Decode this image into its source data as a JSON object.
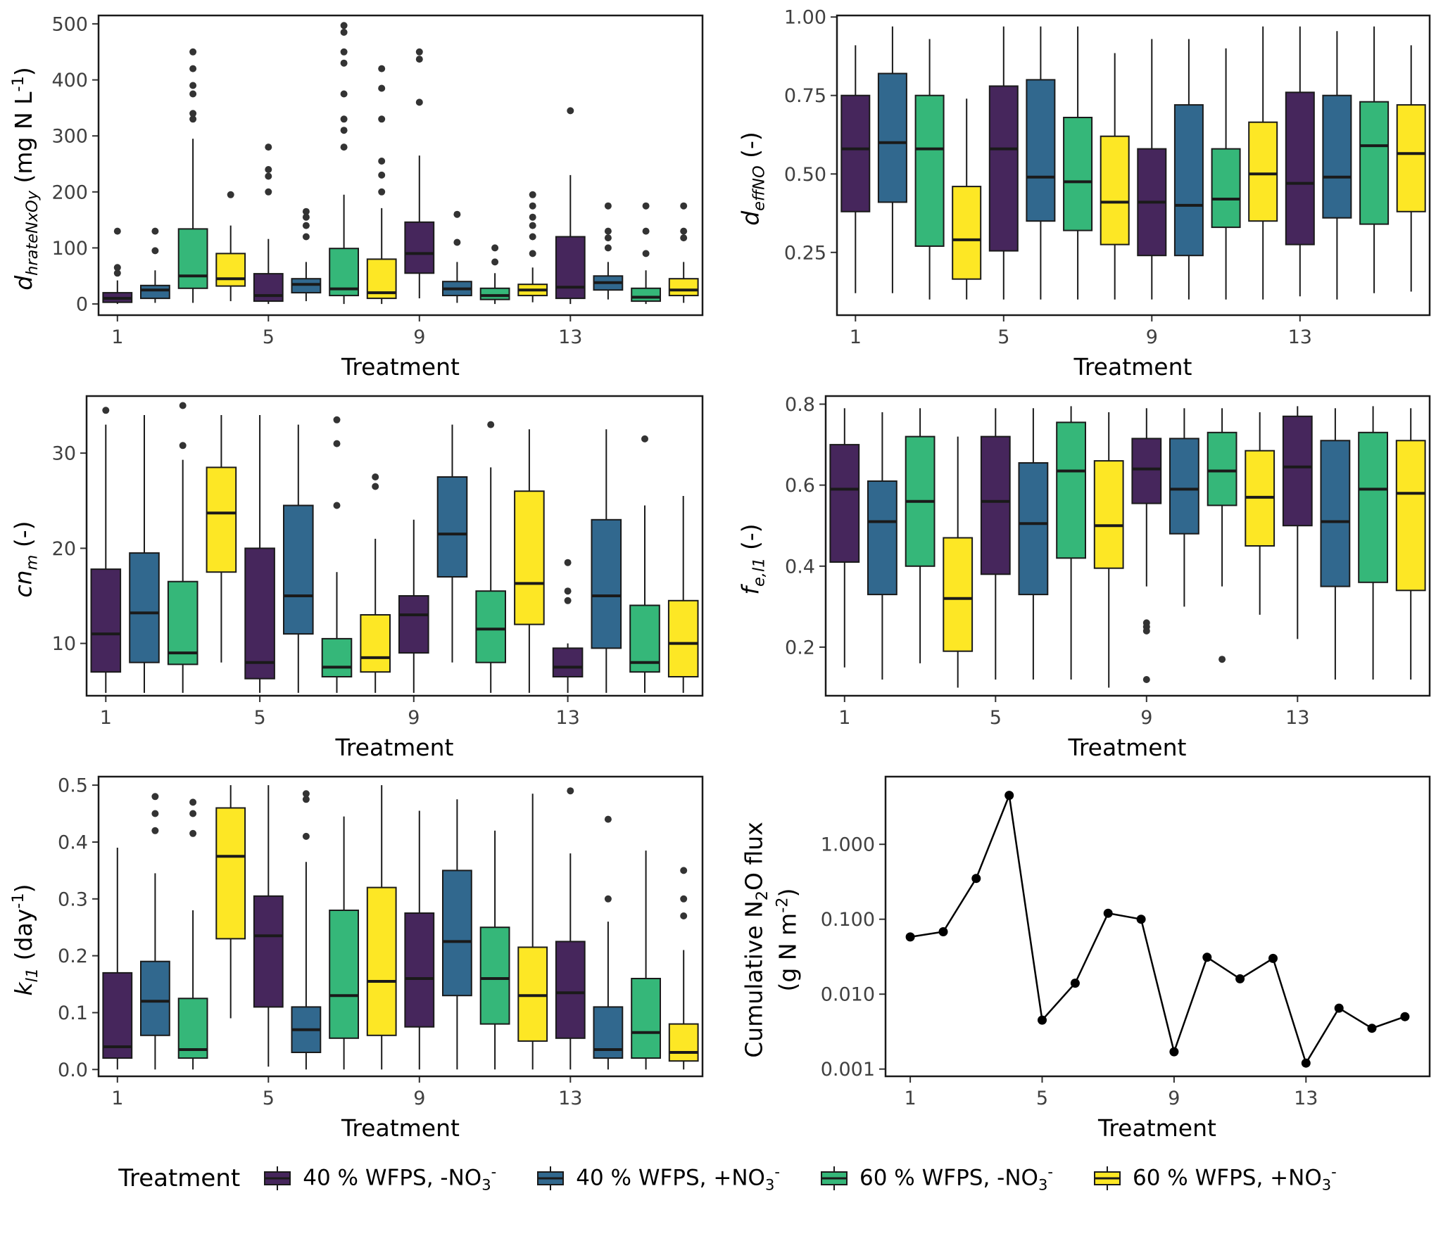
{
  "palette": {
    "purple": "#46265C",
    "blue": "#31688E",
    "green": "#35B779",
    "yellow": "#FDE725",
    "outlier": "#333333"
  },
  "legend": {
    "title": "Treatment",
    "items": [
      {
        "label": "40 % WFPS, -NO_{3}^{-}",
        "color": "purple"
      },
      {
        "label": "40 % WFPS, +NO_{3}^{-}",
        "color": "blue"
      },
      {
        "label": "60 % WFPS, -NO_{3}^{-}",
        "color": "green"
      },
      {
        "label": "60 % WFPS, +NO_{3}^{-}",
        "color": "yellow"
      }
    ]
  },
  "box_format": [
    "min",
    "q1",
    "median",
    "q3",
    "max",
    "outliers"
  ],
  "chart_data": [
    {
      "id": "dhrateNxOy",
      "type": "boxplot",
      "ylabel_lines": [
        "*d*_{*hrateNxOy*} (mg N L^{-1})"
      ],
      "xlabel": "Treatment",
      "ylim": [
        -20,
        515
      ],
      "yticks": [
        0,
        100,
        200,
        300,
        400,
        500
      ],
      "ytick_labels": [
        "0",
        "100",
        "200",
        "300",
        "400",
        "500"
      ],
      "xticks": [
        1,
        5,
        9,
        13
      ],
      "colors_cycle": [
        "purple",
        "blue",
        "green",
        "yellow"
      ],
      "boxes": [
        [
          0,
          3,
          10,
          20,
          42,
          [
            55,
            65,
            130
          ]
        ],
        [
          2,
          10,
          25,
          33,
          60,
          [
            95,
            130
          ]
        ],
        [
          2,
          28,
          50,
          134,
          295,
          [
            330,
            340,
            375,
            390,
            420,
            450
          ]
        ],
        [
          5,
          32,
          45,
          90,
          140,
          [
            195
          ]
        ],
        [
          0,
          5,
          15,
          54,
          116,
          [
            200,
            228,
            240,
            280
          ]
        ],
        [
          5,
          20,
          35,
          45,
          75,
          [
            120,
            140,
            155,
            165
          ]
        ],
        [
          0,
          15,
          27,
          99,
          195,
          [
            280,
            310,
            330,
            375,
            430,
            450,
            485,
            497
          ]
        ],
        [
          0,
          10,
          20,
          80,
          171,
          [
            200,
            230,
            255,
            330,
            385,
            420
          ]
        ],
        [
          10,
          55,
          90,
          146,
          265,
          [
            360,
            437,
            450
          ]
        ],
        [
          2,
          15,
          27,
          40,
          75,
          [
            110,
            160
          ]
        ],
        [
          0,
          8,
          15,
          28,
          55,
          [
            75,
            100
          ]
        ],
        [
          3,
          15,
          25,
          35,
          65,
          [
            90,
            120,
            140,
            155,
            175,
            195
          ]
        ],
        [
          0,
          10,
          30,
          120,
          230,
          [
            345
          ]
        ],
        [
          8,
          25,
          38,
          50,
          75,
          [
            100,
            118,
            130,
            175
          ]
        ],
        [
          0,
          5,
          12,
          28,
          60,
          [
            90,
            130,
            175
          ]
        ],
        [
          2,
          15,
          25,
          45,
          75,
          [
            118,
            130,
            175
          ]
        ]
      ]
    },
    {
      "id": "deffNO",
      "type": "boxplot",
      "ylabel_lines": [
        "*d*_{*effNO*} (-)"
      ],
      "xlabel": "Treatment",
      "ylim": [
        0.05,
        1.005
      ],
      "yticks": [
        0.25,
        0.5,
        0.75,
        1.0
      ],
      "ytick_labels": [
        "0.25",
        "0.50",
        "0.75",
        "1.00"
      ],
      "xticks": [
        1,
        5,
        9,
        13
      ],
      "colors_cycle": [
        "purple",
        "blue",
        "green",
        "yellow"
      ],
      "boxes": [
        [
          0.12,
          0.38,
          0.58,
          0.75,
          0.91,
          []
        ],
        [
          0.12,
          0.41,
          0.6,
          0.82,
          0.97,
          []
        ],
        [
          0.1,
          0.27,
          0.58,
          0.75,
          0.93,
          []
        ],
        [
          0.1,
          0.165,
          0.29,
          0.46,
          0.74,
          []
        ],
        [
          0.1,
          0.255,
          0.58,
          0.78,
          0.97,
          []
        ],
        [
          0.1,
          0.35,
          0.49,
          0.8,
          0.97,
          []
        ],
        [
          0.1,
          0.32,
          0.475,
          0.68,
          0.97,
          []
        ],
        [
          0.1,
          0.275,
          0.41,
          0.62,
          0.885,
          []
        ],
        [
          0.1,
          0.24,
          0.41,
          0.58,
          0.93,
          []
        ],
        [
          0.1,
          0.24,
          0.4,
          0.72,
          0.93,
          []
        ],
        [
          0.1,
          0.33,
          0.42,
          0.58,
          0.9,
          []
        ],
        [
          0.1,
          0.35,
          0.5,
          0.665,
          0.97,
          []
        ],
        [
          0.11,
          0.275,
          0.47,
          0.76,
          0.97,
          []
        ],
        [
          0.1,
          0.36,
          0.49,
          0.75,
          0.955,
          []
        ],
        [
          0.12,
          0.34,
          0.59,
          0.73,
          0.97,
          []
        ],
        [
          0.125,
          0.38,
          0.565,
          0.72,
          0.91,
          []
        ]
      ]
    },
    {
      "id": "cnm",
      "type": "boxplot",
      "ylabel_lines": [
        "*cn*_{*m*} (-)"
      ],
      "xlabel": "Treatment",
      "ylim": [
        4.5,
        36
      ],
      "yticks": [
        10,
        20,
        30
      ],
      "ytick_labels": [
        "10",
        "20",
        "30"
      ],
      "xticks": [
        1,
        5,
        9,
        13
      ],
      "colors_cycle": [
        "purple",
        "blue",
        "green",
        "yellow"
      ],
      "boxes": [
        [
          4.8,
          7,
          11,
          17.8,
          33,
          [
            34.5
          ]
        ],
        [
          4.8,
          8,
          13.2,
          19.5,
          34,
          []
        ],
        [
          4.8,
          7.8,
          9,
          16.5,
          29.3,
          [
            30.8,
            35
          ]
        ],
        [
          8,
          17.5,
          23.7,
          28.5,
          34,
          []
        ],
        [
          4.8,
          6.3,
          8,
          20,
          34,
          []
        ],
        [
          4.8,
          11,
          15,
          24.5,
          33,
          []
        ],
        [
          4.8,
          6.5,
          7.5,
          10.5,
          17.5,
          [
            24.5,
            31,
            33.5
          ]
        ],
        [
          4.8,
          7,
          8.5,
          13,
          21,
          [
            26.5,
            27.5
          ]
        ],
        [
          4.8,
          9,
          13,
          15,
          23,
          []
        ],
        [
          8,
          17,
          21.5,
          27.5,
          33,
          []
        ],
        [
          4.8,
          8,
          11.5,
          15.5,
          28.5,
          [
            33
          ]
        ],
        [
          4.8,
          12,
          16.3,
          26,
          32.5,
          []
        ],
        [
          4.8,
          6.5,
          7.5,
          9.5,
          10,
          [
            14.5,
            15.5,
            18.5
          ]
        ],
        [
          4.8,
          9.5,
          15,
          23,
          32.5,
          []
        ],
        [
          4.8,
          7,
          8,
          14,
          24.5,
          [
            31.5
          ]
        ],
        [
          4.8,
          6.5,
          10,
          14.5,
          25.5,
          []
        ]
      ]
    },
    {
      "id": "fel1",
      "type": "boxplot",
      "ylabel_lines": [
        "*f*_{*e,l1*} (-)"
      ],
      "xlabel": "Treatment",
      "ylim": [
        0.08,
        0.82
      ],
      "yticks": [
        0.2,
        0.4,
        0.6,
        0.8
      ],
      "ytick_labels": [
        "0.2",
        "0.4",
        "0.6",
        "0.8"
      ],
      "xticks": [
        1,
        5,
        9,
        13
      ],
      "colors_cycle": [
        "purple",
        "blue",
        "green",
        "yellow"
      ],
      "boxes": [
        [
          0.15,
          0.41,
          0.59,
          0.7,
          0.79,
          []
        ],
        [
          0.12,
          0.33,
          0.51,
          0.61,
          0.78,
          []
        ],
        [
          0.16,
          0.4,
          0.56,
          0.72,
          0.79,
          []
        ],
        [
          0.1,
          0.19,
          0.32,
          0.47,
          0.72,
          []
        ],
        [
          0.12,
          0.38,
          0.56,
          0.72,
          0.79,
          []
        ],
        [
          0.12,
          0.33,
          0.505,
          0.655,
          0.79,
          []
        ],
        [
          0.12,
          0.42,
          0.635,
          0.755,
          0.795,
          []
        ],
        [
          0.1,
          0.395,
          0.5,
          0.66,
          0.78,
          []
        ],
        [
          0.35,
          0.555,
          0.64,
          0.715,
          0.79,
          [
            0.26,
            0.25,
            0.24,
            0.12
          ]
        ],
        [
          0.3,
          0.48,
          0.59,
          0.715,
          0.79,
          []
        ],
        [
          0.35,
          0.55,
          0.635,
          0.73,
          0.79,
          [
            0.17
          ]
        ],
        [
          0.28,
          0.45,
          0.57,
          0.685,
          0.78,
          []
        ],
        [
          0.22,
          0.5,
          0.645,
          0.77,
          0.795,
          []
        ],
        [
          0.12,
          0.35,
          0.51,
          0.71,
          0.79,
          []
        ],
        [
          0.12,
          0.36,
          0.59,
          0.73,
          0.795,
          []
        ],
        [
          0.12,
          0.34,
          0.58,
          0.71,
          0.79,
          []
        ]
      ]
    },
    {
      "id": "kl1",
      "type": "boxplot",
      "ylabel_lines": [
        "*k*_{*l1*} (day^{-1})"
      ],
      "xlabel": "Treatment",
      "ylim": [
        -0.012,
        0.515
      ],
      "yticks": [
        0.0,
        0.1,
        0.2,
        0.3,
        0.4,
        0.5
      ],
      "ytick_labels": [
        "0.0",
        "0.1",
        "0.2",
        "0.3",
        "0.4",
        "0.5"
      ],
      "xticks": [
        1,
        5,
        9,
        13
      ],
      "colors_cycle": [
        "purple",
        "blue",
        "green",
        "yellow"
      ],
      "boxes": [
        [
          0.0,
          0.02,
          0.04,
          0.17,
          0.39,
          []
        ],
        [
          0.0,
          0.06,
          0.12,
          0.19,
          0.345,
          [
            0.42,
            0.45,
            0.48
          ]
        ],
        [
          0.0,
          0.02,
          0.035,
          0.125,
          0.28,
          [
            0.415,
            0.45,
            0.47
          ]
        ],
        [
          0.09,
          0.23,
          0.375,
          0.46,
          0.5,
          []
        ],
        [
          0.005,
          0.11,
          0.235,
          0.305,
          0.5,
          []
        ],
        [
          0.0,
          0.03,
          0.07,
          0.11,
          0.365,
          [
            0.41,
            0.475,
            0.485
          ]
        ],
        [
          0.0,
          0.055,
          0.13,
          0.28,
          0.445,
          []
        ],
        [
          0.0,
          0.06,
          0.155,
          0.32,
          0.5,
          []
        ],
        [
          0.0,
          0.075,
          0.16,
          0.275,
          0.455,
          []
        ],
        [
          0.0,
          0.13,
          0.225,
          0.35,
          0.475,
          []
        ],
        [
          0.0,
          0.08,
          0.16,
          0.25,
          0.42,
          []
        ],
        [
          0.0,
          0.05,
          0.13,
          0.215,
          0.485,
          []
        ],
        [
          0.0,
          0.055,
          0.135,
          0.225,
          0.38,
          [
            0.49
          ]
        ],
        [
          0.0,
          0.02,
          0.035,
          0.11,
          0.26,
          [
            0.3,
            0.44
          ]
        ],
        [
          0.0,
          0.02,
          0.065,
          0.16,
          0.385,
          []
        ],
        [
          0.0,
          0.015,
          0.03,
          0.08,
          0.21,
          [
            0.27,
            0.3,
            0.35
          ]
        ]
      ]
    },
    {
      "id": "cumulativeN2Oflux",
      "type": "line",
      "ylabel_lines": [
        "Cumulative N_{2}O flux",
        "(g N m^{-2})"
      ],
      "xlabel": "Treatment",
      "yscale": "log",
      "ylim": [
        0.0008,
        8
      ],
      "yticks": [
        0.001,
        0.01,
        0.1,
        1.0
      ],
      "ytick_labels": [
        "0.001",
        "0.010",
        "0.100",
        "1.000"
      ],
      "xticks": [
        1,
        5,
        9,
        13
      ],
      "x": [
        1,
        2,
        3,
        4,
        5,
        6,
        7,
        8,
        9,
        10,
        11,
        12,
        13,
        14,
        15,
        16
      ],
      "y": [
        0.058,
        0.068,
        0.35,
        4.5,
        0.0045,
        0.014,
        0.12,
        0.1,
        0.0017,
        0.031,
        0.016,
        0.03,
        0.0012,
        0.0065,
        0.0035,
        0.005
      ]
    }
  ]
}
